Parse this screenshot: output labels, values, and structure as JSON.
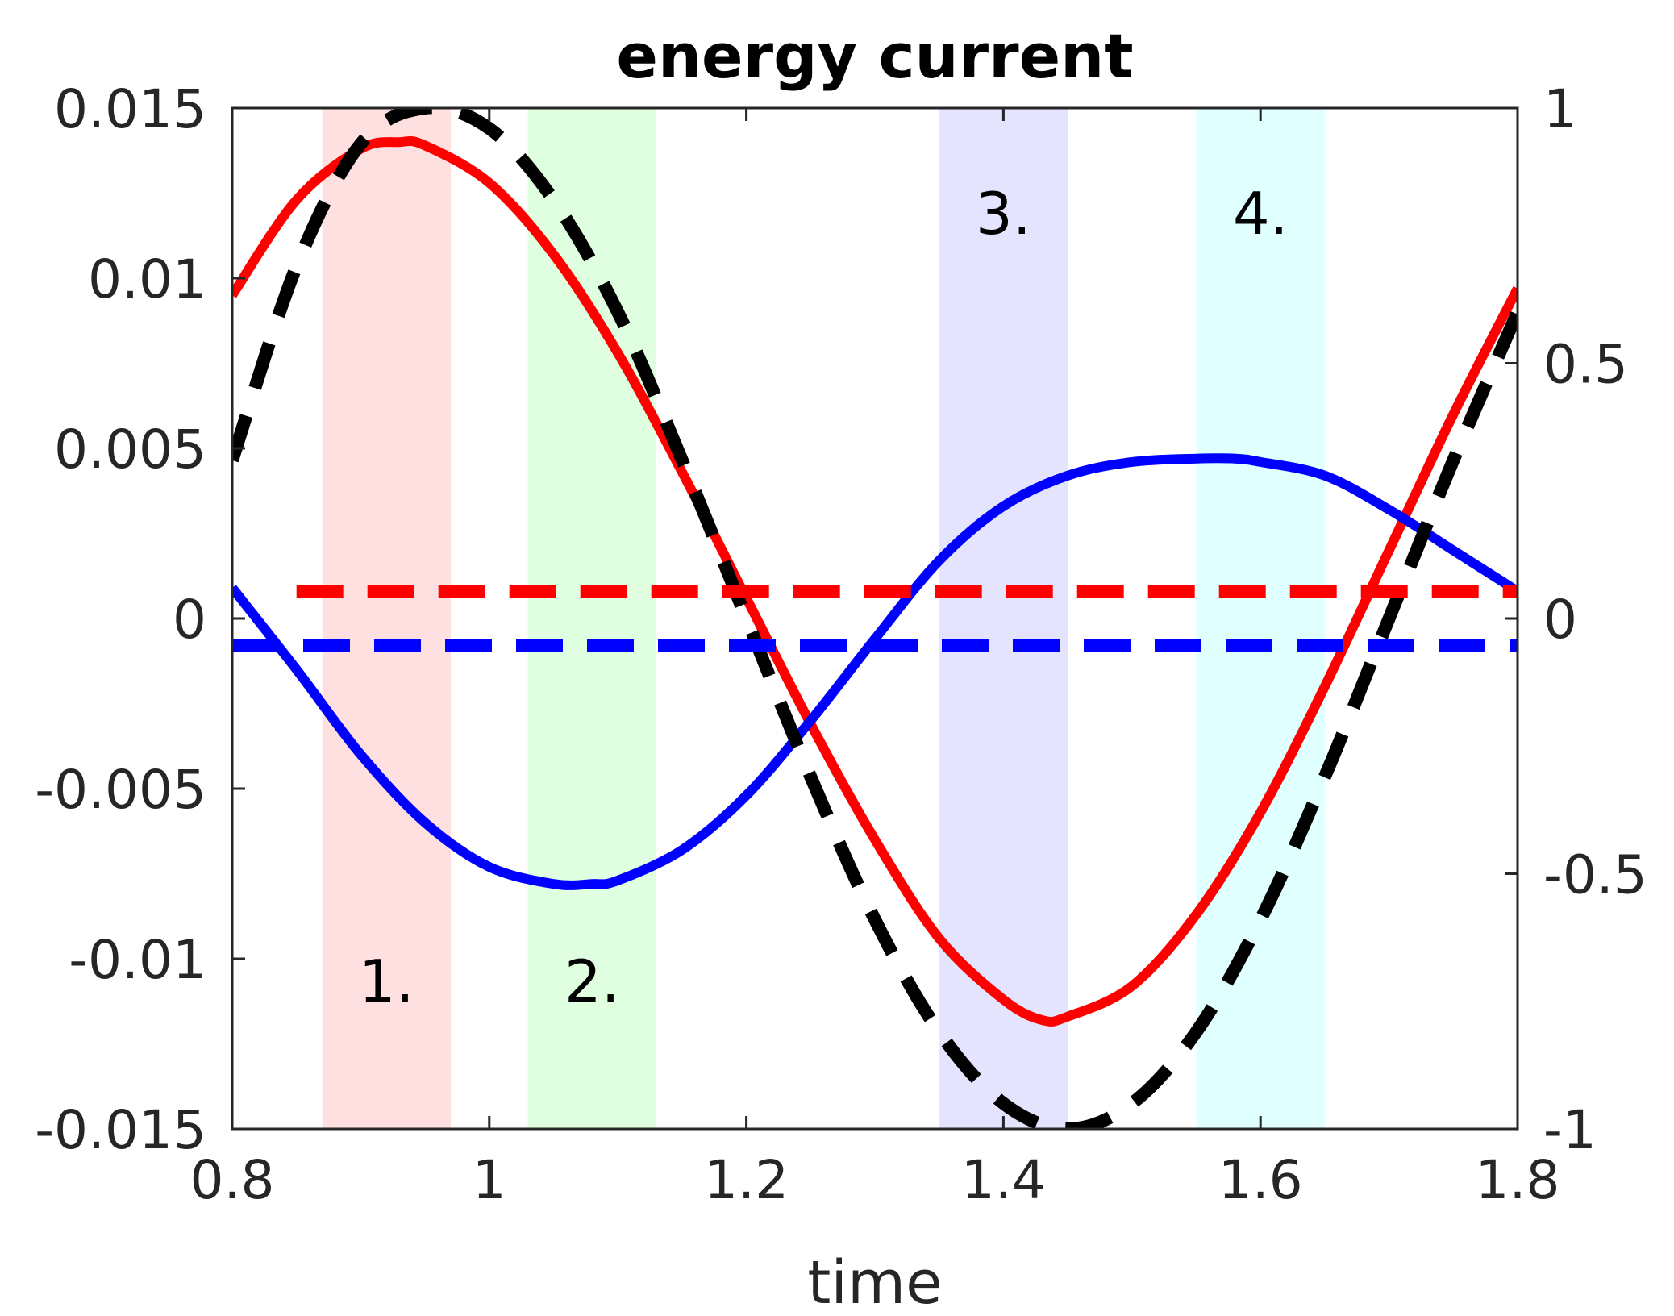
{
  "chart_data": {
    "type": "line",
    "title": "energy current",
    "xlabel": "time",
    "ylabel": "",
    "xlim": [
      0.8,
      1.8
    ],
    "ylim": [
      -0.015,
      0.015
    ],
    "ylim_right": [
      -1,
      1
    ],
    "x_ticks": [
      0.8,
      1.0,
      1.2,
      1.4,
      1.6,
      1.8
    ],
    "x_tick_labels": [
      "0.8",
      "1",
      "1.2",
      "1.4",
      "1.6",
      "1.8"
    ],
    "y_ticks": [
      -0.015,
      -0.01,
      -0.005,
      0,
      0.005,
      0.01,
      0.015
    ],
    "y_tick_labels": [
      "-0.015",
      "-0.01",
      "-0.005",
      "0",
      "0.005",
      "0.01",
      "0.015"
    ],
    "y_ticks_right": [
      -1,
      -0.5,
      0,
      0.5,
      1
    ],
    "y_tick_labels_right": [
      "-1",
      "-0.5",
      "0",
      "0.5",
      "1"
    ],
    "grid": false,
    "bands": [
      {
        "label": "1.",
        "x0": 0.87,
        "x1": 0.97,
        "color": "#ffe0e0"
      },
      {
        "label": "2.",
        "x0": 1.03,
        "x1": 1.13,
        "color": "#e0ffe0"
      },
      {
        "label": "3.",
        "x0": 1.35,
        "x1": 1.45,
        "color": "#e4e4ff"
      },
      {
        "label": "4.",
        "x0": 1.55,
        "x1": 1.65,
        "color": "#e0ffff"
      }
    ],
    "series": [
      {
        "color": "#ff0000",
        "style": "solid",
        "axis": "left",
        "x": [
          0.8,
          0.85,
          0.9,
          0.93,
          0.95,
          1.0,
          1.05,
          1.1,
          1.15,
          1.2,
          1.25,
          1.3,
          1.35,
          1.4,
          1.43,
          1.45,
          1.5,
          1.55,
          1.6,
          1.65,
          1.7,
          1.75,
          1.8
        ],
        "y": [
          0.0095,
          0.0123,
          0.0138,
          0.014,
          0.0139,
          0.0128,
          0.0107,
          0.0078,
          0.0043,
          0.0006,
          -0.0031,
          -0.0065,
          -0.0094,
          -0.0112,
          -0.0118,
          -0.0117,
          -0.0108,
          -0.0087,
          -0.0057,
          -0.002,
          0.002,
          0.006,
          0.0097
        ]
      },
      {
        "color": "#0000ff",
        "style": "solid",
        "axis": "left",
        "x": [
          0.8,
          0.85,
          0.9,
          0.95,
          1.0,
          1.05,
          1.08,
          1.1,
          1.15,
          1.2,
          1.25,
          1.3,
          1.35,
          1.4,
          1.45,
          1.5,
          1.55,
          1.58,
          1.6,
          1.65,
          1.7,
          1.75,
          1.8
        ],
        "y": [
          0.0009,
          -0.0015,
          -0.004,
          -0.006,
          -0.0073,
          -0.0078,
          -0.0078,
          -0.0077,
          -0.0068,
          -0.0052,
          -0.003,
          -0.0006,
          0.0017,
          0.0033,
          0.0042,
          0.0046,
          0.0047,
          0.0047,
          0.0046,
          0.0042,
          0.0032,
          0.002,
          0.0008
        ]
      },
      {
        "color": "#000000",
        "style": "dashed",
        "axis": "right",
        "x": [
          0.8,
          0.85,
          0.9,
          0.95,
          1.0,
          1.05,
          1.1,
          1.15,
          1.2,
          1.25,
          1.3,
          1.35,
          1.4,
          1.45,
          1.5,
          1.55,
          1.6,
          1.65,
          1.7,
          1.75,
          1.8
        ],
        "y": [
          0.31,
          0.69,
          0.93,
          1.0,
          0.96,
          0.82,
          0.6,
          0.31,
          0.0,
          -0.31,
          -0.59,
          -0.81,
          -0.95,
          -1.0,
          -0.95,
          -0.81,
          -0.59,
          -0.31,
          0.0,
          0.31,
          0.6
        ]
      },
      {
        "color": "#ff0000",
        "style": "dashed",
        "axis": "left",
        "x": [
          0.85,
          1.8
        ],
        "y": [
          0.0008,
          0.0008
        ]
      },
      {
        "color": "#0000ff",
        "style": "dashed",
        "axis": "left",
        "x": [
          0.8,
          1.8
        ],
        "y": [
          -0.0008,
          -0.0008
        ]
      }
    ]
  }
}
